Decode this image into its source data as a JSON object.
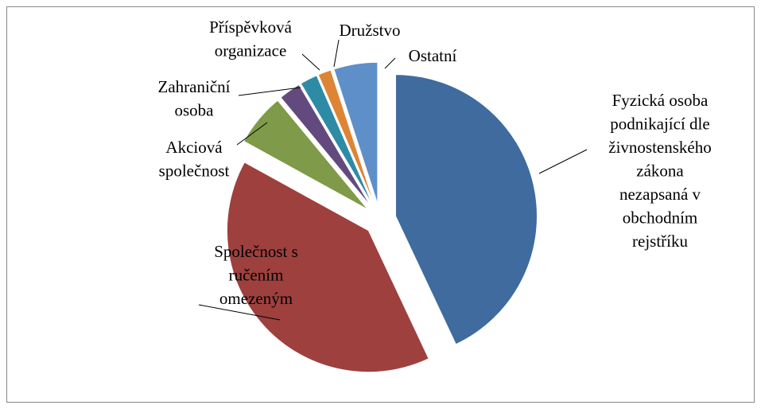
{
  "chart_data": {
    "type": "pie",
    "categories": [
      "Fyzická osoba\npodnikající dle\nživnostenského\nzákona\nnezapsaná v\nobchodním\nrejstříku",
      "Společnost s\nručením\nomezeným",
      "Akciová\nspolečnost",
      "Zahraniční\nosoba",
      "Příspěvková\norganizace",
      "Družstvo",
      "Ostatní"
    ],
    "values": [
      43,
      40,
      6,
      2.5,
      2,
      1.5,
      5
    ],
    "colors": [
      "#3f6b9e",
      "#9e403d",
      "#7f9a48",
      "#624a7e",
      "#2e8ba6",
      "#dd8535",
      "#5f8fc9"
    ]
  }
}
